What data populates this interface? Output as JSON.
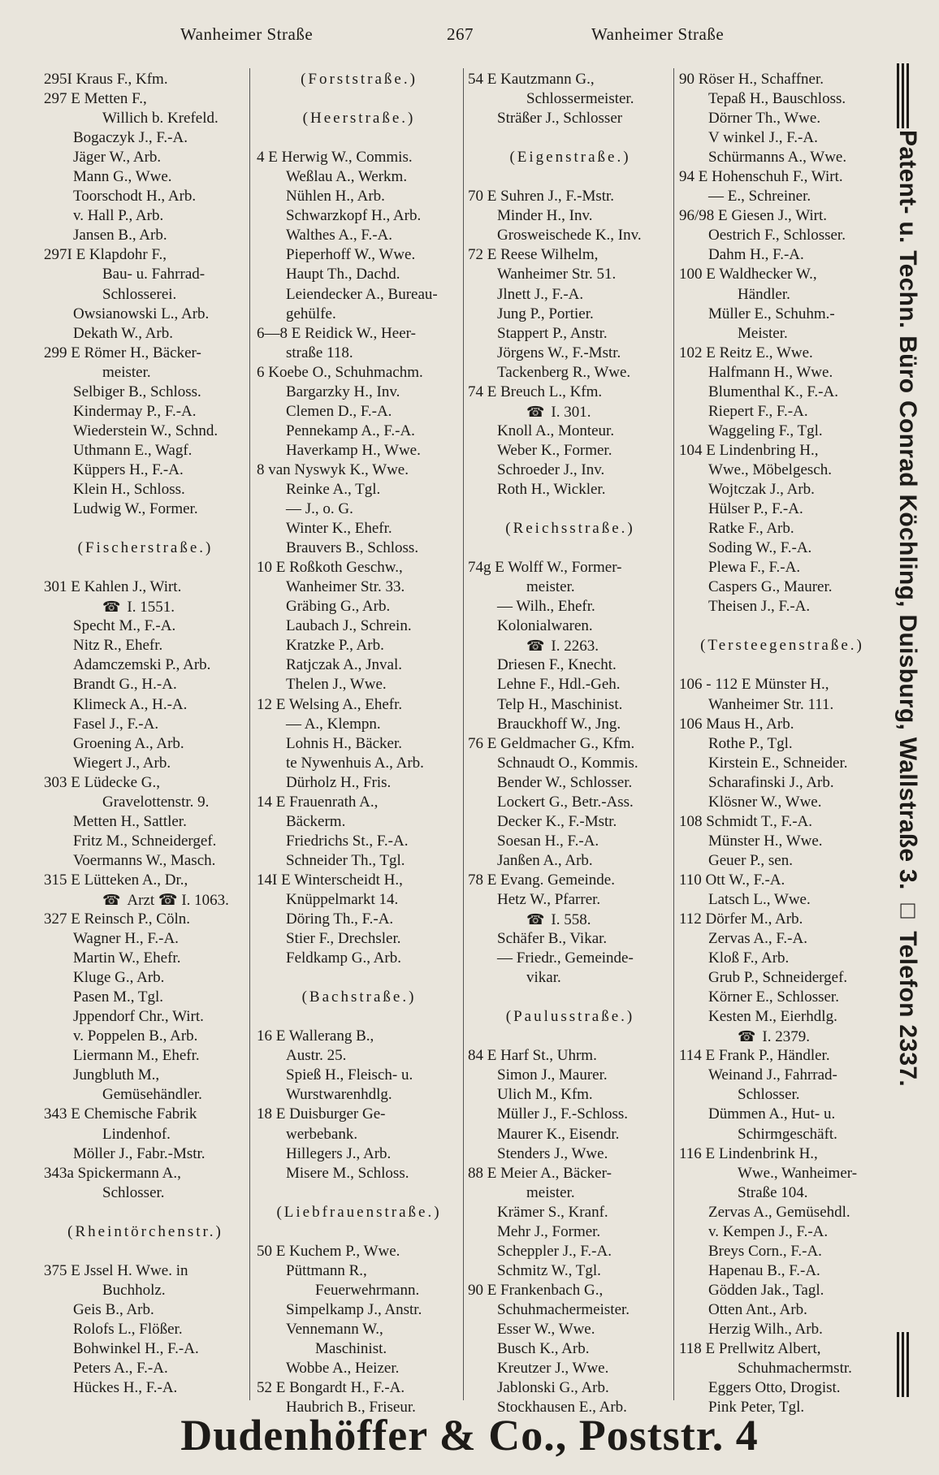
{
  "header": {
    "left": "Wanheimer Straße",
    "page": "267",
    "right": "Wanheimer Straße"
  },
  "columns": [
    [
      {
        "k": "n",
        "t": "295I Kraus F., Kfm."
      },
      {
        "k": "n",
        "t": "297 E Metten F.,"
      },
      {
        "k": "c",
        "t": "Willich b. Krefeld."
      },
      {
        "k": "e",
        "t": "Bogaczyk J., F.-A."
      },
      {
        "k": "e",
        "t": "Jäger W., Arb."
      },
      {
        "k": "e",
        "t": "Mann G., Wwe."
      },
      {
        "k": "e",
        "t": "Toorschodt H., Arb."
      },
      {
        "k": "e",
        "t": "v. Hall P., Arb."
      },
      {
        "k": "e",
        "t": "Jansen B., Arb."
      },
      {
        "k": "n",
        "t": "297I E Klapdohr F.,"
      },
      {
        "k": "c",
        "t": "Bau- u. Fahrrad-"
      },
      {
        "k": "c",
        "t": "Schlosserei."
      },
      {
        "k": "e",
        "t": "Owsianowski L., Arb."
      },
      {
        "k": "e",
        "t": "Dekath W., Arb."
      },
      {
        "k": "n",
        "t": "299 E Römer H., Bäcker-"
      },
      {
        "k": "c",
        "t": "meister."
      },
      {
        "k": "e",
        "t": "Selbiger B., Schloss."
      },
      {
        "k": "e",
        "t": "Kindermay P., F.-A."
      },
      {
        "k": "e",
        "t": "Wiederstein W., Schnd."
      },
      {
        "k": "e",
        "t": "Uthmann E., Wagf."
      },
      {
        "k": "e",
        "t": "Küppers H., F.-A."
      },
      {
        "k": "e",
        "t": "Klein H., Schloss."
      },
      {
        "k": "e",
        "t": "Ludwig W., Former."
      },
      {
        "k": "b",
        "t": ""
      },
      {
        "k": "h",
        "t": "(Fischerstraße.)"
      },
      {
        "k": "b",
        "t": ""
      },
      {
        "k": "n",
        "t": "301 E Kahlen J., Wirt."
      },
      {
        "k": "p",
        "t": "I. 1551."
      },
      {
        "k": "e",
        "t": "Specht M., F.-A."
      },
      {
        "k": "e",
        "t": "Nitz R., Ehefr."
      },
      {
        "k": "e",
        "t": "Adamczemski P., Arb."
      },
      {
        "k": "e",
        "t": "Brandt G., H.-A."
      },
      {
        "k": "e",
        "t": "Klimeck A., H.-A."
      },
      {
        "k": "e",
        "t": "Fasel J., F.-A."
      },
      {
        "k": "e",
        "t": "Groening A., Arb."
      },
      {
        "k": "e",
        "t": "Wiegert J., Arb."
      },
      {
        "k": "n",
        "t": "303 E Lüdecke G.,"
      },
      {
        "k": "c",
        "t": "Gravelottenstr. 9."
      },
      {
        "k": "e",
        "t": "Metten H., Sattler."
      },
      {
        "k": "e",
        "t": "Fritz M., Schneidergef."
      },
      {
        "k": "e",
        "t": "Voermanns W., Masch."
      },
      {
        "k": "n",
        "t": "315 E Lütteken A., Dr.,"
      },
      {
        "k": "p",
        "t": "Arzt ☎ I. 1063."
      },
      {
        "k": "n",
        "t": "327 E Reinsch P., Cöln."
      },
      {
        "k": "e",
        "t": "Wagner H., F.-A."
      },
      {
        "k": "e",
        "t": "Martin W., Ehefr."
      },
      {
        "k": "e",
        "t": "Kluge G., Arb."
      },
      {
        "k": "e",
        "t": "Pasen M., Tgl."
      },
      {
        "k": "e",
        "t": "Jppendorf Chr., Wirt."
      },
      {
        "k": "e",
        "t": "v. Poppelen B., Arb."
      },
      {
        "k": "e",
        "t": "Liermann M., Ehefr."
      },
      {
        "k": "e",
        "t": "Jungbluth M.,"
      },
      {
        "k": "c",
        "t": "Gemüsehändler."
      },
      {
        "k": "n",
        "t": "343 E Chemische Fabrik"
      },
      {
        "k": "c",
        "t": "Lindenhof."
      },
      {
        "k": "e",
        "t": "Möller J., Fabr.-Mstr."
      },
      {
        "k": "n",
        "t": "343a Spickermann A.,"
      },
      {
        "k": "c",
        "t": "Schlosser."
      },
      {
        "k": "b",
        "t": ""
      },
      {
        "k": "h",
        "t": "(Rheintörchenstr.)"
      },
      {
        "k": "b",
        "t": ""
      },
      {
        "k": "n",
        "t": "375 E Jssel H. Wwe. in"
      },
      {
        "k": "c",
        "t": "Buchholz."
      },
      {
        "k": "e",
        "t": "Geis B., Arb."
      },
      {
        "k": "e",
        "t": "Rolofs L., Flößer."
      },
      {
        "k": "e",
        "t": "Bohwinkel H., F.-A."
      },
      {
        "k": "e",
        "t": "Peters A., F.-A."
      },
      {
        "k": "e",
        "t": "Hückes H., F.-A."
      }
    ],
    [
      {
        "k": "h",
        "t": "(Forststraße.)"
      },
      {
        "k": "b",
        "t": ""
      },
      {
        "k": "h",
        "t": "(Heerstraße.)"
      },
      {
        "k": "b",
        "t": ""
      },
      {
        "k": "n",
        "t": "4 E Herwig W., Commis."
      },
      {
        "k": "e",
        "t": "Weßlau A., Werkm."
      },
      {
        "k": "e",
        "t": "Nühlen H., Arb."
      },
      {
        "k": "e",
        "t": "Schwarzkopf H., Arb."
      },
      {
        "k": "e",
        "t": "Walthes A., F.-A."
      },
      {
        "k": "e",
        "t": "Pieperhoff W., Wwe."
      },
      {
        "k": "e",
        "t": "Haupt Th., Dachd."
      },
      {
        "k": "e",
        "t": "Leiendecker A., Bureau-"
      },
      {
        "k": "e",
        "t": "gehülfe."
      },
      {
        "k": "n",
        "t": "6—8 E Reidick W., Heer-"
      },
      {
        "k": "e",
        "t": "straße 118."
      },
      {
        "k": "n",
        "t": "6 Koebe O., Schuhmachm."
      },
      {
        "k": "e",
        "t": "Bargarzky H., Inv."
      },
      {
        "k": "e",
        "t": "Clemen D., F.-A."
      },
      {
        "k": "e",
        "t": "Pennekamp A., F.-A."
      },
      {
        "k": "e",
        "t": "Haverkamp H., Wwe."
      },
      {
        "k": "n",
        "t": "8 van Nyswyk K., Wwe."
      },
      {
        "k": "e",
        "t": "Reinke A., Tgl."
      },
      {
        "k": "e",
        "t": "— J., o. G."
      },
      {
        "k": "e",
        "t": "Winter K., Ehefr."
      },
      {
        "k": "e",
        "t": "Brauvers B., Schloss."
      },
      {
        "k": "n",
        "t": "10 E Roßkoth Geschw.,"
      },
      {
        "k": "e",
        "t": "Wanheimer Str. 33."
      },
      {
        "k": "e",
        "t": "Gräbing G., Arb."
      },
      {
        "k": "e",
        "t": "Laubach J., Schrein."
      },
      {
        "k": "e",
        "t": "Kratzke P., Arb."
      },
      {
        "k": "e",
        "t": "Ratjczak A., Jnval."
      },
      {
        "k": "e",
        "t": "Thelen J., Wwe."
      },
      {
        "k": "n",
        "t": "12 E Welsing A., Ehefr."
      },
      {
        "k": "e",
        "t": "— A., Klempn."
      },
      {
        "k": "e",
        "t": "Lohnis H., Bäcker."
      },
      {
        "k": "e",
        "t": "te Nywenhuis A., Arb."
      },
      {
        "k": "e",
        "t": "Dürholz H., Fris."
      },
      {
        "k": "n",
        "t": "14 E Frauenrath A.,"
      },
      {
        "k": "e",
        "t": "Bäckerm."
      },
      {
        "k": "e",
        "t": "Friedrichs St., F.-A."
      },
      {
        "k": "e",
        "t": "Schneider Th., Tgl."
      },
      {
        "k": "n",
        "t": "14I E Winterscheidt H.,"
      },
      {
        "k": "e",
        "t": "Knüppelmarkt 14."
      },
      {
        "k": "e",
        "t": "Döring Th., F.-A."
      },
      {
        "k": "e",
        "t": "Stier F., Drechsler."
      },
      {
        "k": "e",
        "t": "Feldkamp G., Arb."
      },
      {
        "k": "b",
        "t": ""
      },
      {
        "k": "h",
        "t": "(Bachstraße.)"
      },
      {
        "k": "b",
        "t": ""
      },
      {
        "k": "n",
        "t": "16 E Wallerang B.,"
      },
      {
        "k": "e",
        "t": "Austr. 25."
      },
      {
        "k": "e",
        "t": "Spieß H., Fleisch- u."
      },
      {
        "k": "e",
        "t": "Wurstwarenhdlg."
      },
      {
        "k": "n",
        "t": "18 E Duisburger Ge-"
      },
      {
        "k": "e",
        "t": "werbebank."
      },
      {
        "k": "e",
        "t": "Hillegers J., Arb."
      },
      {
        "k": "e",
        "t": "Misere M., Schloss."
      },
      {
        "k": "b",
        "t": ""
      },
      {
        "k": "h",
        "t": "(Liebfrauenstraße.)"
      },
      {
        "k": "b",
        "t": ""
      },
      {
        "k": "n",
        "t": "50 E Kuchem P., Wwe."
      },
      {
        "k": "e",
        "t": "Püttmann R.,"
      },
      {
        "k": "c",
        "t": "Feuerwehrmann."
      },
      {
        "k": "e",
        "t": "Simpelkamp J., Anstr."
      },
      {
        "k": "e",
        "t": "Vennemann W.,"
      },
      {
        "k": "c",
        "t": "Maschinist."
      },
      {
        "k": "e",
        "t": "Wobbe A., Heizer."
      },
      {
        "k": "n",
        "t": "52 E Bongardt H., F.-A."
      },
      {
        "k": "e",
        "t": "Haubrich B., Friseur."
      }
    ],
    [
      {
        "k": "n",
        "t": "54 E Kautzmann G.,"
      },
      {
        "k": "c",
        "t": "Schlossermeister."
      },
      {
        "k": "e",
        "t": "Sträßer J., Schlosser"
      },
      {
        "k": "b",
        "t": ""
      },
      {
        "k": "h",
        "t": "(Eigenstraße.)"
      },
      {
        "k": "b",
        "t": ""
      },
      {
        "k": "n",
        "t": "70 E Suhren J., F.-Mstr."
      },
      {
        "k": "e",
        "t": "Minder H., Inv."
      },
      {
        "k": "e",
        "t": "Grosweischede K., Inv."
      },
      {
        "k": "n",
        "t": "72 E Reese Wilhelm,"
      },
      {
        "k": "e",
        "t": "Wanheimer Str. 51."
      },
      {
        "k": "e",
        "t": "Jlnett J., F.-A."
      },
      {
        "k": "e",
        "t": "Jung P., Portier."
      },
      {
        "k": "e",
        "t": "Stappert P., Anstr."
      },
      {
        "k": "e",
        "t": "Jörgens W., F.-Mstr."
      },
      {
        "k": "e",
        "t": "Tackenberg R., Wwe."
      },
      {
        "k": "n",
        "t": "74 E Breuch L., Kfm."
      },
      {
        "k": "p",
        "t": "I. 301."
      },
      {
        "k": "e",
        "t": "Knoll A., Monteur."
      },
      {
        "k": "e",
        "t": "Weber K., Former."
      },
      {
        "k": "e",
        "t": "Schroeder J., Inv."
      },
      {
        "k": "e",
        "t": "Roth H., Wickler."
      },
      {
        "k": "b",
        "t": ""
      },
      {
        "k": "h",
        "t": "(Reichsstraße.)"
      },
      {
        "k": "b",
        "t": ""
      },
      {
        "k": "n",
        "t": "74g E Wolff W., Former-"
      },
      {
        "k": "c",
        "t": "meister."
      },
      {
        "k": "e",
        "t": "— Wilh., Ehefr."
      },
      {
        "k": "e",
        "t": "Kolonialwaren."
      },
      {
        "k": "p",
        "t": "I. 2263."
      },
      {
        "k": "e",
        "t": "Driesen F., Knecht."
      },
      {
        "k": "e",
        "t": "Lehne F., Hdl.-Geh."
      },
      {
        "k": "e",
        "t": "Telp H., Maschinist."
      },
      {
        "k": "e",
        "t": "Brauckhoff W., Jng."
      },
      {
        "k": "n",
        "t": "76 E Geldmacher G., Kfm."
      },
      {
        "k": "e",
        "t": "Schnaudt O., Kommis."
      },
      {
        "k": "e",
        "t": "Bender W., Schlosser."
      },
      {
        "k": "e",
        "t": "Lockert G., Betr.-Ass."
      },
      {
        "k": "e",
        "t": "Decker K., F.-Mstr."
      },
      {
        "k": "e",
        "t": "Soesan H., F.-A."
      },
      {
        "k": "e",
        "t": "Janßen A., Arb."
      },
      {
        "k": "n",
        "t": "78 E Evang. Gemeinde."
      },
      {
        "k": "e",
        "t": "Hetz W., Pfarrer."
      },
      {
        "k": "p",
        "t": "I. 558."
      },
      {
        "k": "e",
        "t": "Schäfer B., Vikar."
      },
      {
        "k": "e",
        "t": "— Friedr., Gemeinde-"
      },
      {
        "k": "c",
        "t": "vikar."
      },
      {
        "k": "b",
        "t": ""
      },
      {
        "k": "h",
        "t": "(Paulusstraße.)"
      },
      {
        "k": "b",
        "t": ""
      },
      {
        "k": "n",
        "t": "84 E Harf St., Uhrm."
      },
      {
        "k": "e",
        "t": "Simon J., Maurer."
      },
      {
        "k": "e",
        "t": "Ulich M., Kfm."
      },
      {
        "k": "e",
        "t": "Müller J., F.-Schloss."
      },
      {
        "k": "e",
        "t": "Maurer K., Eisendr."
      },
      {
        "k": "e",
        "t": "Stenders J., Wwe."
      },
      {
        "k": "n",
        "t": "88 E Meier A., Bäcker-"
      },
      {
        "k": "c",
        "t": "meister."
      },
      {
        "k": "e",
        "t": "Krämer S., Kranf."
      },
      {
        "k": "e",
        "t": "Mehr J., Former."
      },
      {
        "k": "e",
        "t": "Scheppler J., F.-A."
      },
      {
        "k": "e",
        "t": "Schmitz W., Tgl."
      },
      {
        "k": "n",
        "t": "90 E Frankenbach G.,"
      },
      {
        "k": "e",
        "t": "Schuhmachermeister."
      },
      {
        "k": "e",
        "t": "Esser W., Wwe."
      },
      {
        "k": "e",
        "t": "Busch K., Arb."
      },
      {
        "k": "e",
        "t": "Kreutzer J., Wwe."
      },
      {
        "k": "e",
        "t": "Jablonski G., Arb."
      },
      {
        "k": "e",
        "t": "Stockhausen E., Arb."
      }
    ],
    [
      {
        "k": "n",
        "t": "90 Röser H., Schaffner."
      },
      {
        "k": "e",
        "t": "Tepaß H., Bauschloss."
      },
      {
        "k": "e",
        "t": "Dörner Th., Wwe."
      },
      {
        "k": "e",
        "t": "V winkel J., F.-A."
      },
      {
        "k": "e",
        "t": "Schürmanns A., Wwe."
      },
      {
        "k": "n",
        "t": "94 E Hohenschuh F., Wirt."
      },
      {
        "k": "e",
        "t": "— E., Schreiner."
      },
      {
        "k": "n",
        "t": "96/98 E Giesen J., Wirt."
      },
      {
        "k": "e",
        "t": "Oestrich F., Schlosser."
      },
      {
        "k": "e",
        "t": "Dahm H., F.-A."
      },
      {
        "k": "n",
        "t": "100 E Waldhecker W.,"
      },
      {
        "k": "c",
        "t": "Händler."
      },
      {
        "k": "e",
        "t": "Müller E., Schuhm.-"
      },
      {
        "k": "c",
        "t": "Meister."
      },
      {
        "k": "n",
        "t": "102 E Reitz E., Wwe."
      },
      {
        "k": "e",
        "t": "Halfmann H., Wwe."
      },
      {
        "k": "e",
        "t": "Blumenthal K., F.-A."
      },
      {
        "k": "e",
        "t": "Riepert F., F.-A."
      },
      {
        "k": "e",
        "t": "Waggeling F., Tgl."
      },
      {
        "k": "n",
        "t": "104 E Lindenbring H.,"
      },
      {
        "k": "e",
        "t": "Wwe., Möbelgesch."
      },
      {
        "k": "e",
        "t": "Wojtczak J., Arb."
      },
      {
        "k": "e",
        "t": "Hülser P., F.-A."
      },
      {
        "k": "e",
        "t": "Ratke F., Arb."
      },
      {
        "k": "e",
        "t": "Soding W., F.-A."
      },
      {
        "k": "e",
        "t": "Plewa F., F.-A."
      },
      {
        "k": "e",
        "t": "Caspers G., Maurer."
      },
      {
        "k": "e",
        "t": "Theisen J., F.-A."
      },
      {
        "k": "b",
        "t": ""
      },
      {
        "k": "h",
        "t": "(Tersteegenstraße.)"
      },
      {
        "k": "b",
        "t": ""
      },
      {
        "k": "n",
        "t": "106 - 112 E Münster H.,"
      },
      {
        "k": "e",
        "t": "Wanheimer Str. 111."
      },
      {
        "k": "n",
        "t": "106 Maus H., Arb."
      },
      {
        "k": "e",
        "t": "Rothe P., Tgl."
      },
      {
        "k": "e",
        "t": "Kirstein E., Schneider."
      },
      {
        "k": "e",
        "t": "Scharafinski J., Arb."
      },
      {
        "k": "e",
        "t": "Klösner W., Wwe."
      },
      {
        "k": "n",
        "t": "108 Schmidt T., F.-A."
      },
      {
        "k": "e",
        "t": "Münster H., Wwe."
      },
      {
        "k": "e",
        "t": "Geuer P., sen."
      },
      {
        "k": "n",
        "t": "110 Ott W., F.-A."
      },
      {
        "k": "e",
        "t": "Latsch L., Wwe."
      },
      {
        "k": "n",
        "t": "112 Dörfer M., Arb."
      },
      {
        "k": "e",
        "t": "Zervas A., F.-A."
      },
      {
        "k": "e",
        "t": "Kloß F., Arb."
      },
      {
        "k": "e",
        "t": "Grub P., Schneidergef."
      },
      {
        "k": "e",
        "t": "Körner E., Schlosser."
      },
      {
        "k": "e",
        "t": "Kesten M., Eierhdlg."
      },
      {
        "k": "p",
        "t": "I. 2379."
      },
      {
        "k": "n",
        "t": "114 E Frank P., Händler."
      },
      {
        "k": "e",
        "t": "Weinand J., Fahrrad-"
      },
      {
        "k": "c",
        "t": "Schlosser."
      },
      {
        "k": "e",
        "t": "Dümmen A., Hut- u."
      },
      {
        "k": "c",
        "t": "Schirmgeschäft."
      },
      {
        "k": "n",
        "t": "116 E Lindenbrink H.,"
      },
      {
        "k": "c",
        "t": "Wwe., Wanheimer-"
      },
      {
        "k": "c",
        "t": "Straße 104."
      },
      {
        "k": "e",
        "t": "Zervas A., Gemüsehdl."
      },
      {
        "k": "e",
        "t": "v. Kempen J., F.-A."
      },
      {
        "k": "e",
        "t": "Breys Corn., F.-A."
      },
      {
        "k": "e",
        "t": "Hapenau B., F.-A."
      },
      {
        "k": "e",
        "t": "Gödden Jak., Tagl."
      },
      {
        "k": "e",
        "t": "Otten Ant., Arb."
      },
      {
        "k": "e",
        "t": "Herzig Wilh., Arb."
      },
      {
        "k": "n",
        "t": "118 E Prellwitz Albert,"
      },
      {
        "k": "c",
        "t": "Schuhmachermstr."
      },
      {
        "k": "e",
        "t": "Eggers Otto, Drogist."
      },
      {
        "k": "e",
        "t": "Pink Peter, Tgl."
      }
    ]
  ],
  "phone_icon": "telephone-receiver-icon",
  "side_ad": "Patent- u. Techn. Büro Conrad Köchling, Duisburg, Wallstraße 3. □ Telefon 2337.",
  "footer_ad": "Dudenhöffer & Co., Poststr. 4"
}
